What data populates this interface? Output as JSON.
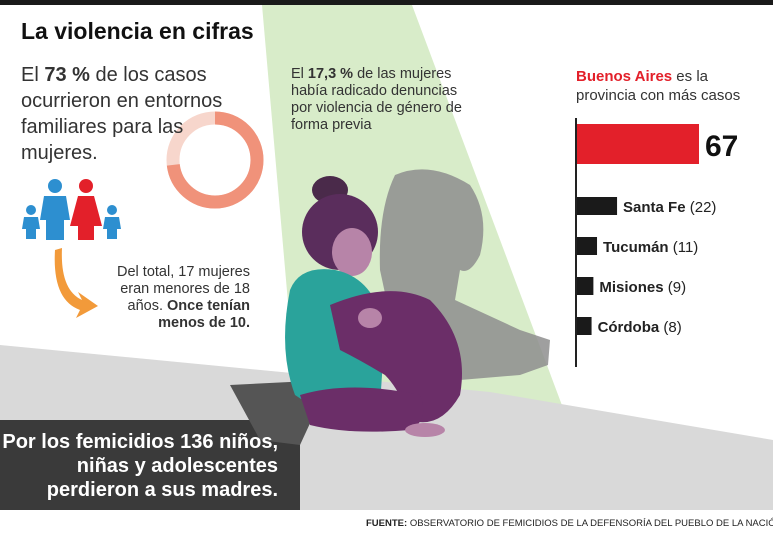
{
  "title": "La violencia en cifras",
  "stat_73": {
    "pre": "El ",
    "value": "73 %",
    "post": " de los casos ocurrieron en entornos familiares para las mujeres.",
    "percent": 73
  },
  "stat_173": {
    "pre": "El ",
    "value": "17,3 %",
    "post": " de las mujeres había radicado denuncias por violencia de género de forma previa",
    "percent": 17.3
  },
  "minors": {
    "text": "Del total, 17 mujeres eran menores de 18 años. ",
    "bold": "Once tenían menos de 10."
  },
  "province": {
    "highlight": "Buenos Aires",
    "rest": " es la provincia con más casos"
  },
  "bottom_text": "Por los femicidios 136 niños, niñas y adolescentes perdieron a sus madres.",
  "source_label": "FUENTE:",
  "source_text": "OBSERVATORIO DE FEMICIDIOS DE LA DEFENSORÍA DEL PUEBLO DE LA NACIÓN",
  "colors": {
    "accent": "#e3202a",
    "bars": "#1a1a1a",
    "donut": "#f0927a",
    "light_green": "#d8ecc9",
    "dark_panel": "#2e2e2e"
  },
  "chart_data": {
    "type": "bar",
    "orientation": "horizontal",
    "categories": [
      "Buenos Aires",
      "Santa Fe",
      "Tucumán",
      "Misiones",
      "Córdoba"
    ],
    "values": [
      67,
      22,
      11,
      9,
      8
    ],
    "value_labels": [
      "67",
      "(22)",
      "(11)",
      "(9)",
      "(8)"
    ],
    "highlight_color": "#e3202a",
    "bar_color": "#1a1a1a"
  }
}
